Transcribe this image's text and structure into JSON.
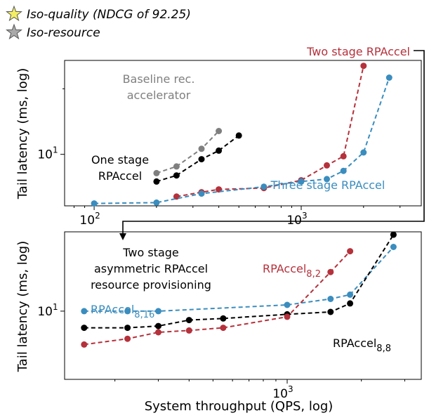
{
  "legend": {
    "items": [
      {
        "label": "Iso-quality (NDCG of 92.25)",
        "marker": "star",
        "color": "#f3ee63"
      },
      {
        "label": "Iso-resource",
        "marker": "star",
        "color": "#a9a9a9"
      }
    ]
  },
  "xlabel": "System throughput (QPS, log)",
  "chart_data": [
    {
      "type": "line",
      "xscale": "log",
      "yscale": "log",
      "xlim": [
        72,
        3800
      ],
      "ylim": [
        5.8,
        27
      ],
      "xticks": [
        {
          "value": 100,
          "label": "10",
          "sup": "2"
        },
        {
          "value": 1000,
          "label": "10",
          "sup": "3"
        }
      ],
      "yticks": [
        {
          "value": 10,
          "label": "10",
          "sup": "1"
        }
      ],
      "ylabel": "Tail latency (ms, log)",
      "series": [
        {
          "name": "Baseline rec. accelerator",
          "color": "#7f7f7f",
          "x": [
            200,
            250,
            330,
            400
          ],
          "y": [
            8.2,
            8.8,
            10.6,
            12.8
          ]
        },
        {
          "name": "One stage RPAccel",
          "color": "#000000",
          "x": [
            200,
            250,
            330,
            400,
            500
          ],
          "y": [
            7.5,
            8.0,
            9.5,
            10.4,
            12.2
          ]
        },
        {
          "name": "Two stage RPAccel",
          "color": "#b5313b",
          "x": [
            250,
            330,
            400,
            660,
            1000,
            1330,
            1600,
            2000
          ],
          "y": [
            6.4,
            6.7,
            6.9,
            7.0,
            7.6,
            8.9,
            9.8,
            25.5
          ]
        },
        {
          "name": "Three stage RPAccel",
          "color": "#3a8dbe",
          "x": [
            100,
            200,
            330,
            660,
            1000,
            1330,
            1600,
            2000,
            2660
          ],
          "y": [
            5.95,
            6.0,
            6.6,
            7.1,
            7.5,
            7.7,
            8.4,
            10.2,
            22.5
          ]
        }
      ],
      "annotations": [
        {
          "text": "Baseline rec.",
          "color": "#7f7f7f"
        },
        {
          "text": "accelerator",
          "color": "#7f7f7f"
        },
        {
          "text": "One stage",
          "color": "#000000"
        },
        {
          "text": "RPAccel",
          "color": "#000000"
        },
        {
          "text": "Three stage RPAccel",
          "color": "#3a8dbe"
        },
        {
          "text": "Two stage RPAccel",
          "color": "#b5313b"
        }
      ]
    },
    {
      "type": "line",
      "xscale": "log",
      "yscale": "log",
      "xlim": [
        125,
        3500
      ],
      "ylim": [
        6.5,
        16.5
      ],
      "xticks": [
        {
          "value": 1000,
          "label": "10",
          "sup": "3"
        }
      ],
      "yticks": [
        {
          "value": 10,
          "label": "10",
          "sup": "1"
        }
      ],
      "ylabel": "Tail latency (ms, log)",
      "series": [
        {
          "name": "RPAccel8,16",
          "color": "#3a8dbe",
          "x": [
            150,
            225,
            300,
            1000,
            1500,
            1800,
            2700
          ],
          "y": [
            10.0,
            10.0,
            10.0,
            10.4,
            10.8,
            11.1,
            15.0
          ]
        },
        {
          "name": "RPAccel8,8",
          "color": "#000000",
          "x": [
            150,
            225,
            300,
            400,
            550,
            1000,
            1500,
            1800,
            2700
          ],
          "y": [
            9.0,
            9.0,
            9.1,
            9.45,
            9.55,
            9.8,
            9.95,
            10.5,
            16.2
          ]
        },
        {
          "name": "RPAccel8,2",
          "color": "#b5313b",
          "x": [
            150,
            225,
            300,
            400,
            550,
            1000,
            1500,
            1800
          ],
          "y": [
            8.1,
            8.4,
            8.75,
            8.85,
            9.0,
            9.65,
            12.8,
            14.6
          ]
        }
      ],
      "annotations": [
        {
          "text": "Two stage",
          "color": "#000000"
        },
        {
          "text": "asymmetric RPAccel",
          "color": "#000000"
        },
        {
          "text": "resource provisioning",
          "color": "#000000"
        },
        {
          "text": "RPAccel",
          "sub": "8,16",
          "color": "#3a8dbe"
        },
        {
          "text": "RPAccel",
          "sub": "8,2",
          "color": "#b5313b"
        },
        {
          "text": "RPAccel",
          "sub": "8,8",
          "color": "#000000"
        }
      ]
    }
  ]
}
